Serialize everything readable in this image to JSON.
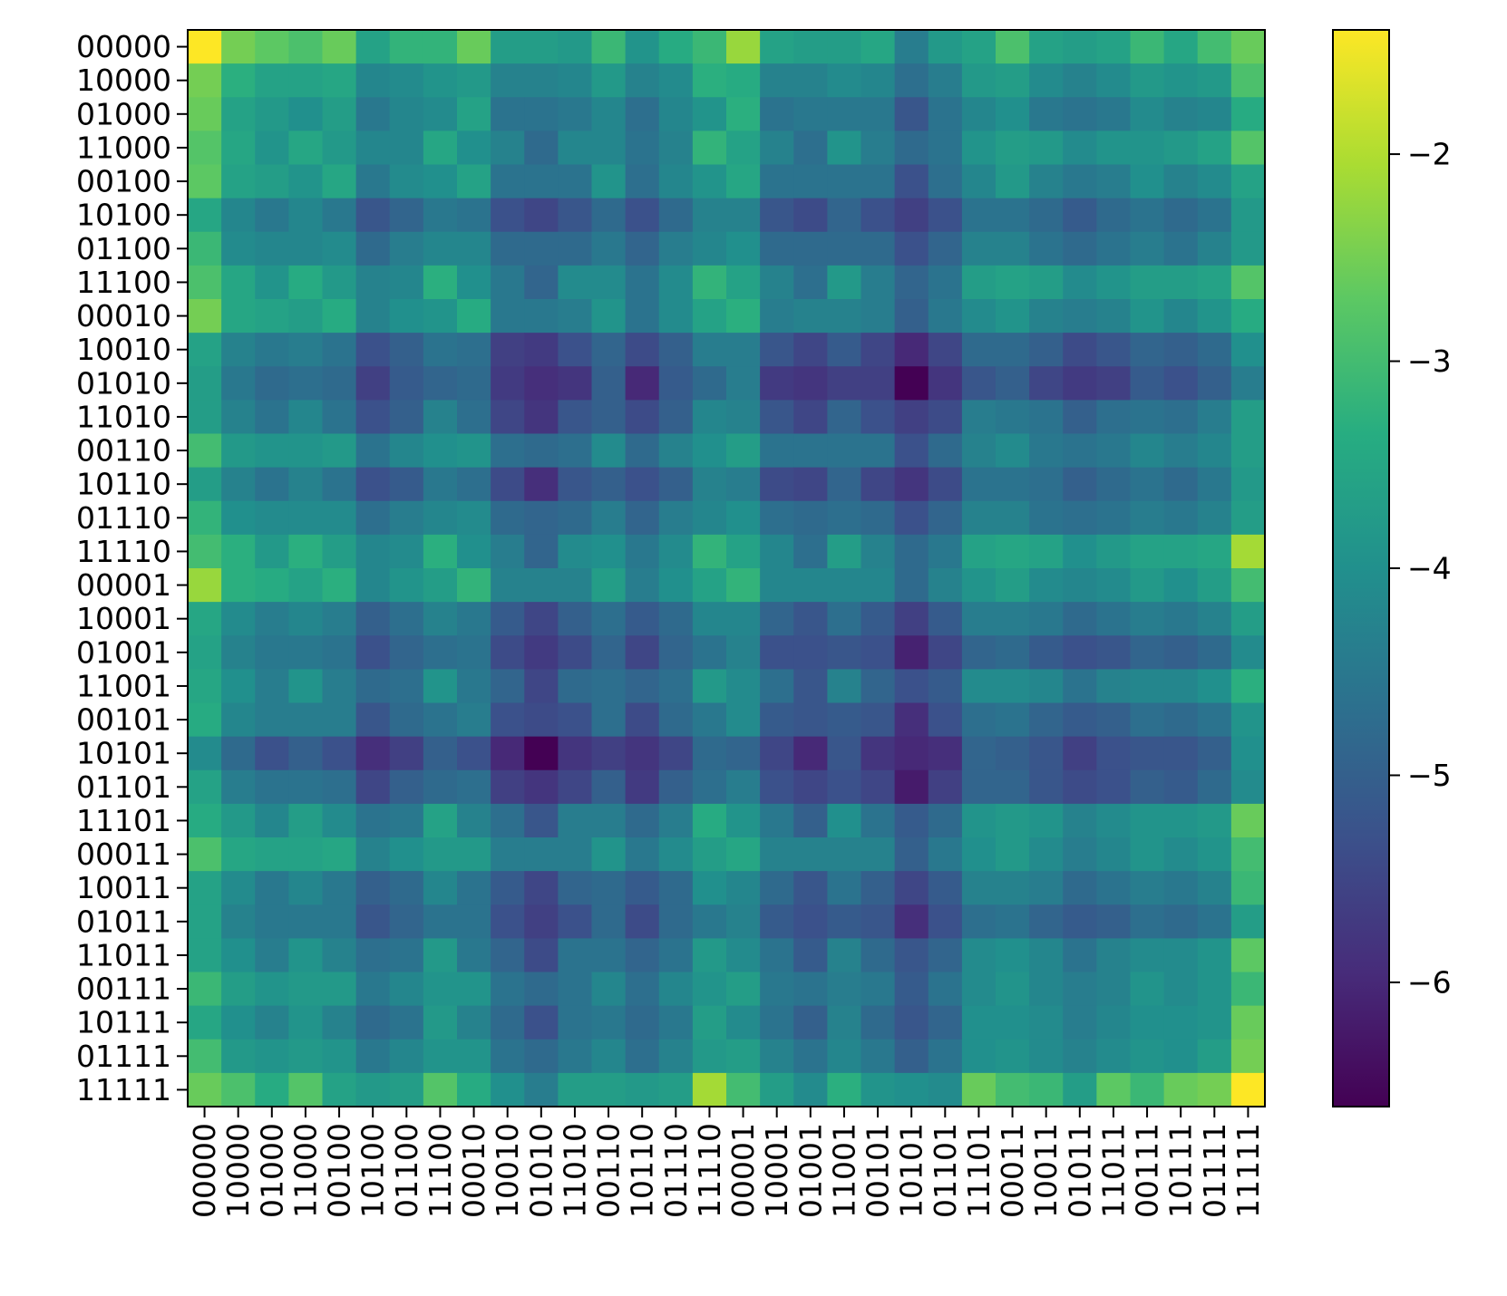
{
  "chart_data": {
    "type": "heatmap",
    "title": "",
    "xlabel": "",
    "ylabel": "",
    "x_labels": [
      "00000",
      "10000",
      "01000",
      "11000",
      "00100",
      "10100",
      "01100",
      "11100",
      "00010",
      "10010",
      "01010",
      "11010",
      "00110",
      "10110",
      "01110",
      "11110",
      "00001",
      "10001",
      "01001",
      "11001",
      "00101",
      "10101",
      "01101",
      "11101",
      "00011",
      "10011",
      "01011",
      "11011",
      "00111",
      "10111",
      "01111",
      "11111"
    ],
    "y_labels": [
      "00000",
      "10000",
      "01000",
      "11000",
      "00100",
      "10100",
      "01100",
      "11100",
      "00010",
      "10010",
      "01010",
      "11010",
      "00110",
      "10110",
      "01110",
      "11110",
      "00001",
      "10001",
      "01001",
      "11001",
      "00101",
      "10101",
      "01101",
      "11101",
      "00011",
      "10011",
      "01011",
      "11011",
      "00111",
      "10111",
      "01111",
      "11111"
    ],
    "colormap": "viridis",
    "color_range": [
      -6.6,
      -1.4
    ],
    "colorbar_ticks": [
      -2,
      -3,
      -4,
      -5,
      -6
    ],
    "colorbar_tick_labels": [
      "−2",
      "−3",
      "−4",
      "−5",
      "−6"
    ],
    "values": [
      [
        -1.4,
        -2.5,
        -2.7,
        -2.9,
        -2.6,
        -3.6,
        -3.2,
        -3.2,
        -2.6,
        -3.7,
        -3.7,
        -3.8,
        -3.1,
        -3.9,
        -3.4,
        -3.1,
        -2.2,
        -3.6,
        -3.7,
        -3.7,
        -3.5,
        -4.4,
        -3.8,
        -3.6,
        -2.9,
        -3.6,
        -3.7,
        -3.6,
        -3.1,
        -3.5,
        -3.0,
        -2.6
      ],
      [
        -2.5,
        -3.3,
        -3.6,
        -3.6,
        -3.5,
        -4.2,
        -4.1,
        -3.9,
        -3.8,
        -4.3,
        -4.3,
        -4.2,
        -3.8,
        -4.3,
        -4.1,
        -3.3,
        -3.4,
        -4.3,
        -4.3,
        -4.1,
        -4.2,
        -4.7,
        -4.4,
        -3.8,
        -3.7,
        -4.1,
        -4.3,
        -4.1,
        -3.8,
        -3.9,
        -3.8,
        -2.9
      ],
      [
        -2.6,
        -3.6,
        -3.8,
        -4.0,
        -3.7,
        -4.5,
        -4.2,
        -4.1,
        -3.6,
        -4.6,
        -4.6,
        -4.5,
        -4.2,
        -4.7,
        -4.2,
        -3.9,
        -3.3,
        -4.6,
        -4.5,
        -4.5,
        -4.5,
        -5.2,
        -4.6,
        -4.2,
        -4.0,
        -4.5,
        -4.6,
        -4.5,
        -4.1,
        -4.3,
        -4.2,
        -3.4
      ],
      [
        -2.8,
        -3.5,
        -3.9,
        -3.5,
        -3.8,
        -4.2,
        -4.2,
        -3.5,
        -4.0,
        -4.3,
        -4.8,
        -4.2,
        -4.2,
        -4.6,
        -4.3,
        -3.2,
        -3.6,
        -4.3,
        -4.7,
        -3.9,
        -4.4,
        -4.8,
        -4.6,
        -3.9,
        -3.7,
        -3.8,
        -4.1,
        -3.9,
        -3.9,
        -3.8,
        -3.6,
        -2.8
      ],
      [
        -2.7,
        -3.6,
        -3.7,
        -3.9,
        -3.5,
        -4.5,
        -4.1,
        -4.0,
        -3.6,
        -4.6,
        -4.6,
        -4.6,
        -3.9,
        -4.7,
        -4.2,
        -3.9,
        -3.5,
        -4.6,
        -4.6,
        -4.6,
        -4.6,
        -5.3,
        -4.7,
        -4.2,
        -3.8,
        -4.3,
        -4.5,
        -4.4,
        -4.0,
        -4.3,
        -4.1,
        -3.6
      ],
      [
        -3.5,
        -4.2,
        -4.5,
        -4.2,
        -4.5,
        -5.2,
        -4.9,
        -4.5,
        -4.6,
        -5.3,
        -5.5,
        -5.2,
        -4.8,
        -5.3,
        -4.8,
        -4.3,
        -4.3,
        -5.2,
        -5.4,
        -4.9,
        -5.3,
        -5.6,
        -5.3,
        -4.6,
        -4.6,
        -4.8,
        -5.1,
        -4.8,
        -4.6,
        -4.8,
        -4.6,
        -3.8
      ],
      [
        -3.1,
        -4.1,
        -4.2,
        -4.2,
        -4.1,
        -4.8,
        -4.4,
        -4.2,
        -4.2,
        -4.8,
        -4.8,
        -4.8,
        -4.5,
        -4.9,
        -4.4,
        -4.2,
        -4.0,
        -4.8,
        -4.8,
        -4.8,
        -4.8,
        -5.3,
        -4.9,
        -4.3,
        -4.3,
        -4.6,
        -4.8,
        -4.6,
        -4.4,
        -4.6,
        -4.3,
        -3.8
      ],
      [
        -2.9,
        -3.5,
        -3.9,
        -3.4,
        -3.8,
        -4.3,
        -4.2,
        -3.3,
        -4.0,
        -4.5,
        -4.9,
        -4.1,
        -4.1,
        -4.6,
        -4.1,
        -3.2,
        -3.6,
        -4.3,
        -4.7,
        -3.8,
        -4.4,
        -4.9,
        -4.6,
        -3.7,
        -3.6,
        -3.7,
        -4.1,
        -3.9,
        -3.7,
        -3.7,
        -3.6,
        -2.8
      ],
      [
        -2.5,
        -3.5,
        -3.6,
        -3.7,
        -3.4,
        -4.3,
        -4.0,
        -3.9,
        -3.4,
        -4.5,
        -4.5,
        -4.4,
        -3.9,
        -4.6,
        -4.1,
        -3.6,
        -3.3,
        -4.4,
        -4.3,
        -4.3,
        -4.4,
        -5.0,
        -4.5,
        -4.1,
        -3.9,
        -4.3,
        -4.4,
        -4.3,
        -3.9,
        -4.2,
        -3.9,
        -3.4
      ],
      [
        -3.6,
        -4.3,
        -4.5,
        -4.4,
        -4.6,
        -5.3,
        -5.0,
        -4.6,
        -4.7,
        -5.6,
        -5.7,
        -5.3,
        -4.9,
        -5.4,
        -5.0,
        -4.4,
        -4.4,
        -5.2,
        -5.5,
        -5.1,
        -5.5,
        -6.0,
        -5.5,
        -4.8,
        -4.8,
        -5.0,
        -5.4,
        -5.2,
        -4.9,
        -5.0,
        -4.8,
        -4.0
      ],
      [
        -3.7,
        -4.5,
        -4.8,
        -4.7,
        -4.8,
        -5.6,
        -5.1,
        -4.9,
        -4.8,
        -5.7,
        -5.9,
        -5.8,
        -5.0,
        -6.0,
        -5.1,
        -4.8,
        -4.4,
        -5.7,
        -5.8,
        -5.6,
        -5.6,
        -6.6,
        -5.8,
        -5.2,
        -5.0,
        -5.5,
        -5.7,
        -5.6,
        -5.1,
        -5.3,
        -5.0,
        -4.4
      ],
      [
        -3.7,
        -4.3,
        -4.6,
        -4.2,
        -4.6,
        -5.3,
        -5.0,
        -4.3,
        -4.7,
        -5.5,
        -5.8,
        -5.2,
        -5.0,
        -5.4,
        -5.0,
        -4.2,
        -4.3,
        -5.2,
        -5.5,
        -4.9,
        -5.3,
        -5.6,
        -5.4,
        -4.4,
        -4.5,
        -4.6,
        -5.0,
        -4.7,
        -4.6,
        -4.7,
        -4.4,
        -3.7
      ],
      [
        -3.0,
        -3.8,
        -3.9,
        -3.9,
        -3.8,
        -4.6,
        -4.2,
        -4.0,
        -3.9,
        -4.7,
        -4.8,
        -4.7,
        -4.1,
        -4.8,
        -4.3,
        -4.0,
        -3.7,
        -4.6,
        -4.6,
        -4.6,
        -4.6,
        -5.3,
        -4.8,
        -4.3,
        -4.1,
        -4.5,
        -4.6,
        -4.5,
        -4.2,
        -4.4,
        -4.2,
        -3.7
      ],
      [
        -3.7,
        -4.3,
        -4.6,
        -4.3,
        -4.6,
        -5.3,
        -5.1,
        -4.5,
        -4.7,
        -5.4,
        -5.9,
        -5.2,
        -5.0,
        -5.3,
        -5.0,
        -4.3,
        -4.4,
        -5.4,
        -5.5,
        -4.9,
        -5.5,
        -5.8,
        -5.4,
        -4.6,
        -4.6,
        -4.7,
        -5.0,
        -4.8,
        -4.6,
        -4.8,
        -4.5,
        -3.8
      ],
      [
        -3.2,
        -4.0,
        -4.1,
        -4.1,
        -4.1,
        -4.7,
        -4.4,
        -4.2,
        -4.1,
        -4.8,
        -4.9,
        -4.8,
        -4.4,
        -4.9,
        -4.4,
        -4.2,
        -4.0,
        -4.7,
        -4.8,
        -4.7,
        -4.8,
        -5.3,
        -4.9,
        -4.3,
        -4.3,
        -4.6,
        -4.7,
        -4.6,
        -4.4,
        -4.5,
        -4.3,
        -3.7
      ],
      [
        -3.0,
        -3.3,
        -3.8,
        -3.3,
        -3.7,
        -4.2,
        -4.1,
        -3.3,
        -4.0,
        -4.4,
        -4.9,
        -4.1,
        -4.0,
        -4.5,
        -4.1,
        -3.2,
        -3.6,
        -4.2,
        -4.7,
        -3.7,
        -4.3,
        -4.8,
        -4.5,
        -3.6,
        -3.5,
        -3.6,
        -4.0,
        -3.8,
        -3.6,
        -3.6,
        -3.5,
        -2.1
      ],
      [
        -2.2,
        -3.3,
        -3.4,
        -3.6,
        -3.3,
        -4.2,
        -3.9,
        -3.7,
        -3.2,
        -4.3,
        -4.3,
        -4.3,
        -3.7,
        -4.4,
        -4.0,
        -3.6,
        -3.2,
        -4.2,
        -4.2,
        -4.2,
        -4.2,
        -4.8,
        -4.3,
        -3.9,
        -3.7,
        -4.1,
        -4.2,
        -4.1,
        -3.8,
        -4.0,
        -3.7,
        -3.0
      ],
      [
        -3.5,
        -4.1,
        -4.4,
        -4.2,
        -4.4,
        -5.0,
        -4.7,
        -4.3,
        -4.5,
        -5.1,
        -5.5,
        -5.0,
        -4.7,
        -5.1,
        -4.8,
        -4.2,
        -4.2,
        -4.9,
        -5.2,
        -4.7,
        -5.1,
        -5.6,
        -5.1,
        -4.4,
        -4.4,
        -4.5,
        -4.8,
        -4.6,
        -4.4,
        -4.5,
        -4.3,
        -3.7
      ],
      [
        -3.6,
        -4.3,
        -4.5,
        -4.5,
        -4.6,
        -5.3,
        -4.9,
        -4.7,
        -4.6,
        -5.4,
        -5.7,
        -5.4,
        -4.9,
        -5.5,
        -4.9,
        -4.6,
        -4.3,
        -5.3,
        -5.3,
        -5.2,
        -5.3,
        -6.1,
        -5.5,
        -4.9,
        -4.8,
        -5.1,
        -5.3,
        -5.2,
        -4.9,
        -5.0,
        -4.8,
        -4.1
      ],
      [
        -3.5,
        -4.0,
        -4.4,
        -3.9,
        -4.4,
        -4.8,
        -4.7,
        -3.9,
        -4.5,
        -4.9,
        -5.5,
        -4.8,
        -4.7,
        -4.9,
        -4.7,
        -3.8,
        -4.1,
        -4.7,
        -5.2,
        -4.3,
        -4.9,
        -5.3,
        -5.1,
        -4.1,
        -4.1,
        -4.2,
        -4.6,
        -4.3,
        -4.2,
        -4.2,
        -4.0,
        -3.3
      ],
      [
        -3.4,
        -4.2,
        -4.4,
        -4.4,
        -4.4,
        -5.2,
        -4.8,
        -4.6,
        -4.4,
        -5.3,
        -5.4,
        -5.3,
        -4.7,
        -5.4,
        -4.8,
        -4.5,
        -4.1,
        -5.1,
        -5.2,
        -5.1,
        -5.2,
        -5.9,
        -5.3,
        -4.7,
        -4.6,
        -4.9,
        -5.1,
        -5.0,
        -4.7,
        -4.8,
        -4.6,
        -3.9
      ],
      [
        -4.1,
        -4.8,
        -5.3,
        -5.0,
        -5.3,
        -5.9,
        -5.6,
        -5.0,
        -5.3,
        -6.0,
        -6.6,
        -5.8,
        -5.6,
        -5.8,
        -5.5,
        -4.8,
        -4.9,
        -5.5,
        -6.0,
        -5.2,
        -5.8,
        -6.0,
        -5.9,
        -4.9,
        -5.0,
        -5.2,
        -5.6,
        -5.3,
        -5.2,
        -5.2,
        -5.0,
        -4.0
      ],
      [
        -3.6,
        -4.4,
        -4.6,
        -4.6,
        -4.7,
        -5.5,
        -5.0,
        -4.8,
        -4.7,
        -5.6,
        -5.8,
        -5.5,
        -5.0,
        -5.7,
        -5.0,
        -4.7,
        -4.4,
        -5.3,
        -5.5,
        -5.3,
        -5.5,
        -6.2,
        -5.6,
        -4.9,
        -4.9,
        -5.2,
        -5.4,
        -5.3,
        -5.0,
        -5.1,
        -4.8,
        -4.1
      ],
      [
        -3.4,
        -3.8,
        -4.2,
        -3.7,
        -4.1,
        -4.6,
        -4.5,
        -3.6,
        -4.3,
        -4.7,
        -5.2,
        -4.4,
        -4.4,
        -4.8,
        -4.4,
        -3.4,
        -3.9,
        -4.5,
        -5.0,
        -4.0,
        -4.6,
        -5.1,
        -4.8,
        -3.9,
        -3.8,
        -3.9,
        -4.3,
        -4.1,
        -3.9,
        -3.9,
        -3.8,
        -2.6
      ],
      [
        -2.9,
        -3.5,
        -3.6,
        -3.6,
        -3.5,
        -4.3,
        -4.0,
        -3.8,
        -3.8,
        -4.4,
        -4.4,
        -4.4,
        -3.9,
        -4.5,
        -4.1,
        -3.7,
        -3.5,
        -4.3,
        -4.3,
        -4.3,
        -4.3,
        -5.0,
        -4.5,
        -4.0,
        -3.8,
        -4.1,
        -4.4,
        -4.2,
        -3.9,
        -4.1,
        -3.9,
        -3.0
      ],
      [
        -3.6,
        -4.1,
        -4.5,
        -4.2,
        -4.5,
        -5.0,
        -4.8,
        -4.2,
        -4.6,
        -5.1,
        -5.5,
        -4.9,
        -4.8,
        -5.1,
        -4.8,
        -4.0,
        -4.2,
        -4.8,
        -5.2,
        -4.6,
        -5.0,
        -5.5,
        -5.1,
        -4.3,
        -4.3,
        -4.4,
        -4.8,
        -4.6,
        -4.4,
        -4.5,
        -4.3,
        -3.1
      ],
      [
        -3.6,
        -4.3,
        -4.5,
        -4.5,
        -4.5,
        -5.2,
        -4.9,
        -4.6,
        -4.6,
        -5.3,
        -5.6,
        -5.3,
        -4.8,
        -5.4,
        -4.8,
        -4.5,
        -4.3,
        -5.1,
        -5.3,
        -5.1,
        -5.2,
        -5.9,
        -5.3,
        -4.7,
        -4.6,
        -4.9,
        -5.1,
        -5.0,
        -4.7,
        -4.8,
        -4.6,
        -3.7
      ],
      [
        -3.6,
        -4.0,
        -4.4,
        -3.9,
        -4.3,
        -4.7,
        -4.6,
        -3.8,
        -4.5,
        -4.9,
        -5.4,
        -4.6,
        -4.6,
        -4.9,
        -4.6,
        -3.8,
        -4.1,
        -4.6,
        -5.1,
        -4.3,
        -4.8,
        -5.2,
        -4.9,
        -4.1,
        -4.0,
        -4.2,
        -4.6,
        -4.3,
        -4.1,
        -4.1,
        -3.9,
        -2.7
      ],
      [
        -3.1,
        -3.7,
        -3.9,
        -3.8,
        -3.8,
        -4.5,
        -4.2,
        -3.9,
        -3.9,
        -4.6,
        -4.8,
        -4.6,
        -4.2,
        -4.7,
        -4.2,
        -3.9,
        -3.7,
        -4.5,
        -4.6,
        -4.4,
        -4.5,
        -5.1,
        -4.6,
        -4.1,
        -3.9,
        -4.2,
        -4.4,
        -4.3,
        -3.9,
        -4.1,
        -3.9,
        -3.1
      ],
      [
        -3.5,
        -4.0,
        -4.3,
        -3.9,
        -4.3,
        -4.8,
        -4.6,
        -3.8,
        -4.3,
        -4.8,
        -5.3,
        -4.6,
        -4.5,
        -4.8,
        -4.5,
        -3.7,
        -4.1,
        -4.6,
        -5.0,
        -4.3,
        -4.8,
        -5.2,
        -4.9,
        -4.0,
        -4.0,
        -4.1,
        -4.4,
        -4.2,
        -4.0,
        -4.0,
        -3.9,
        -2.6
      ],
      [
        -3.0,
        -3.8,
        -3.9,
        -3.8,
        -3.9,
        -4.5,
        -4.2,
        -3.9,
        -3.9,
        -4.6,
        -4.8,
        -4.5,
        -4.2,
        -4.7,
        -4.3,
        -3.8,
        -3.7,
        -4.3,
        -4.6,
        -4.2,
        -4.5,
        -5.0,
        -4.6,
        -4.0,
        -3.9,
        -4.1,
        -4.3,
        -4.1,
        -3.9,
        -4.0,
        -3.7,
        -2.5
      ],
      [
        -2.6,
        -2.9,
        -3.4,
        -2.8,
        -3.6,
        -3.8,
        -3.7,
        -2.8,
        -3.4,
        -4.0,
        -4.4,
        -3.7,
        -3.7,
        -3.8,
        -3.7,
        -2.1,
        -3.0,
        -3.7,
        -4.1,
        -3.3,
        -3.9,
        -4.0,
        -4.1,
        -2.6,
        -3.0,
        -3.1,
        -3.7,
        -2.7,
        -3.1,
        -2.6,
        -2.5,
        -1.4
      ]
    ]
  }
}
